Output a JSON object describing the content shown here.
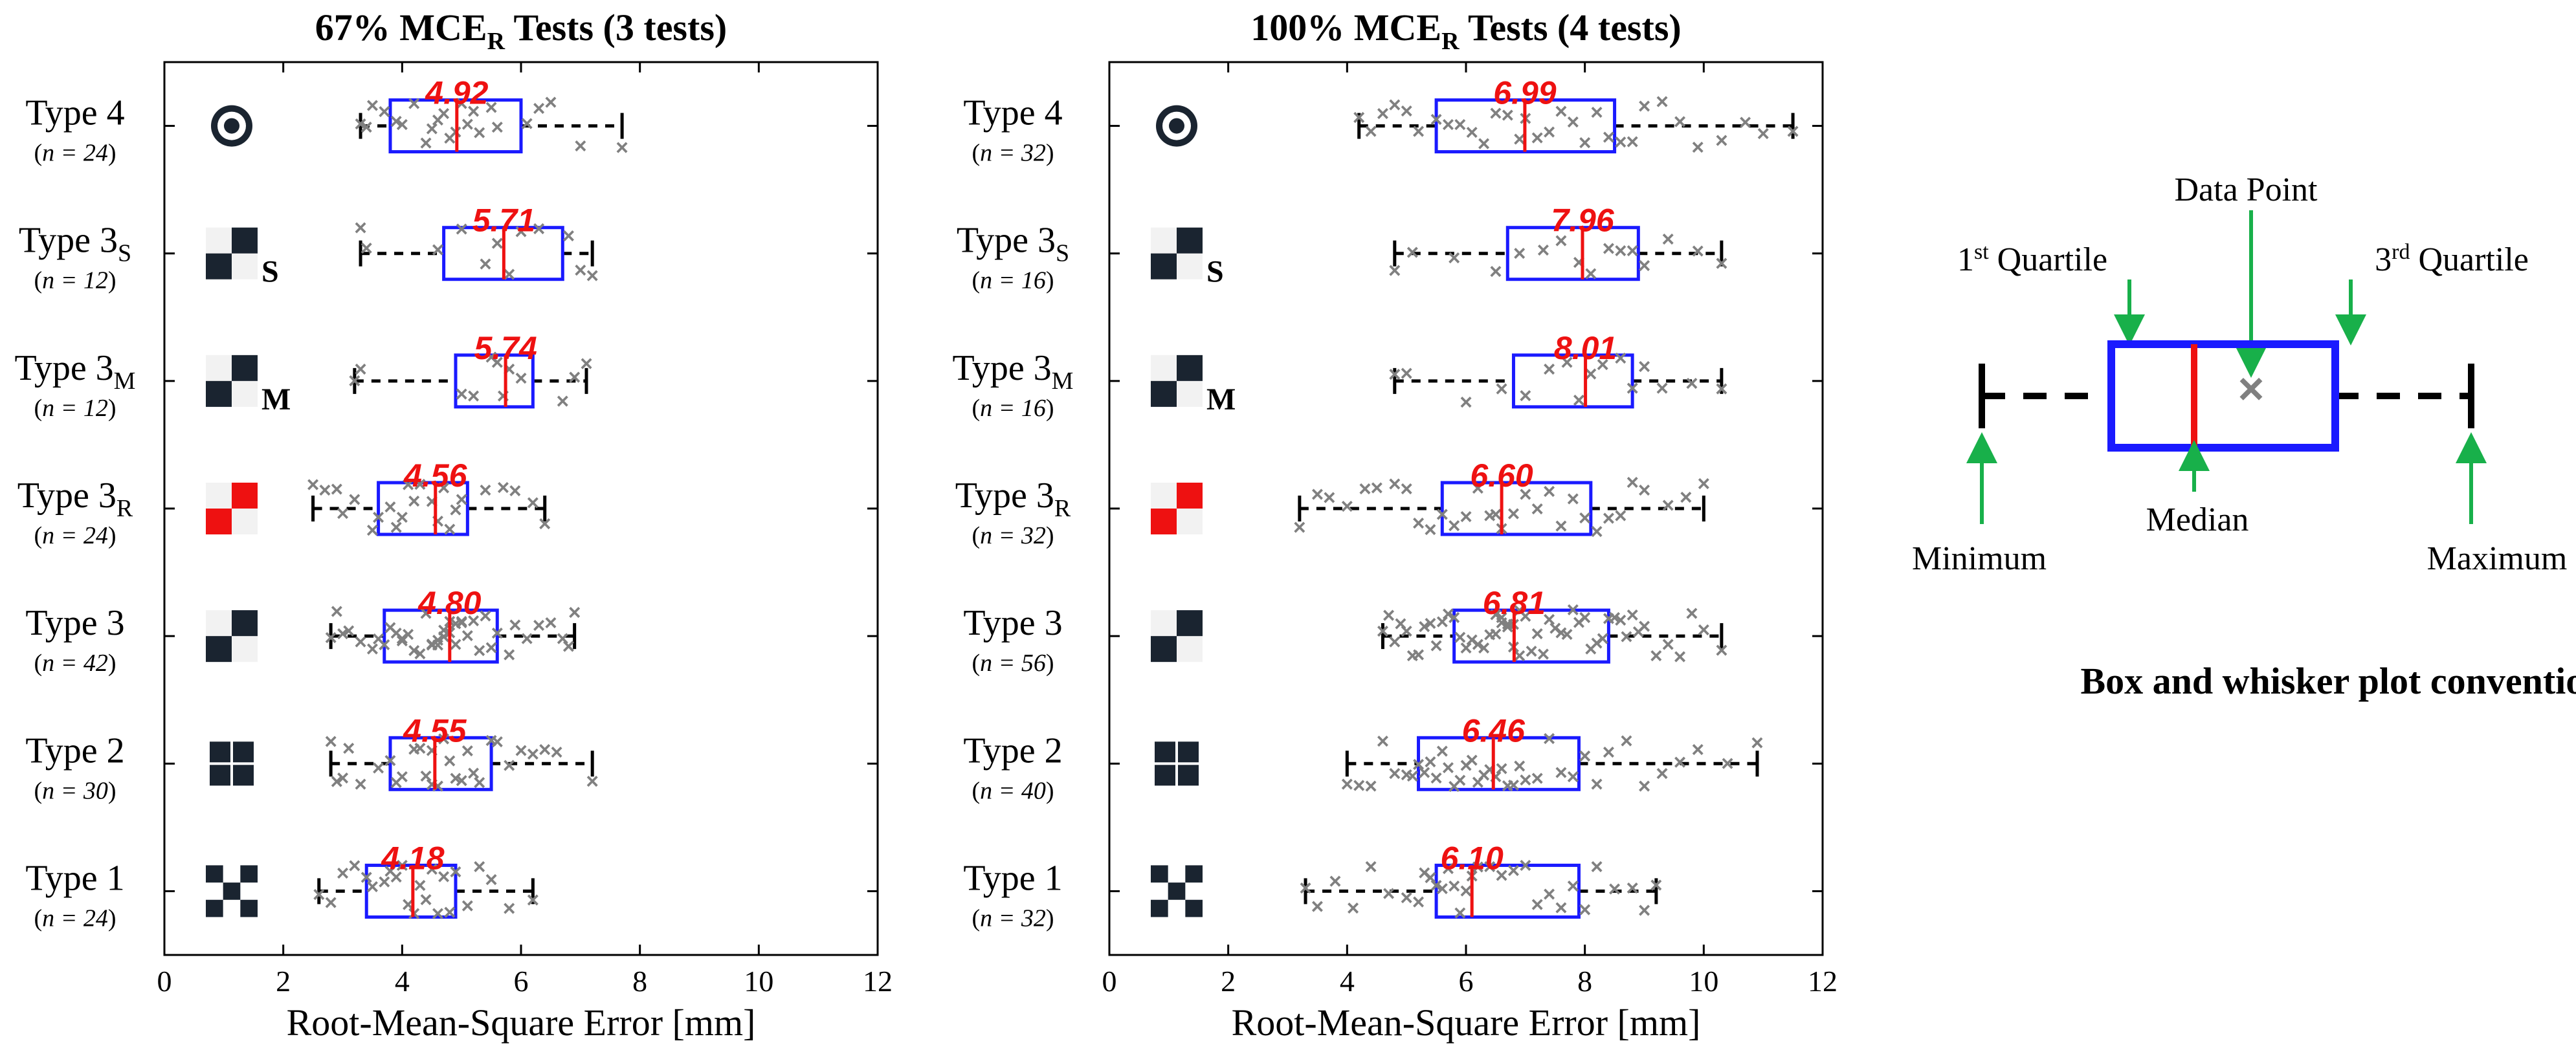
{
  "chart_data": [
    {
      "type": "box",
      "title": "67% MCE",
      "title_sub": "R",
      "title_rest": " Tests (3 tests)",
      "xlabel": "Root-Mean-Square Error [mm]",
      "xlim": [
        0,
        12
      ],
      "xticks": [
        0,
        2,
        4,
        6,
        8,
        10,
        12
      ],
      "categories": [
        {
          "name": "Type 4",
          "sub": "",
          "n": "24",
          "icon": "bullseye-icon",
          "q1": 3.8,
          "median": 4.92,
          "q3": 6.0,
          "min": 3.3,
          "max": 7.7,
          "label": "4.92",
          "points": [
            3.3,
            3.4,
            3.5,
            3.7,
            3.9,
            4.0,
            4.2,
            4.4,
            4.5,
            4.6,
            4.7,
            4.8,
            4.9,
            5.0,
            5.1,
            5.2,
            5.3,
            5.5,
            5.6,
            6.1,
            6.3,
            6.5,
            7.0,
            7.7
          ]
        },
        {
          "name": "Type 3",
          "sub": "S",
          "n": "12",
          "icon": "checker-s-icon",
          "q1": 4.7,
          "median": 5.71,
          "q3": 6.7,
          "min": 3.3,
          "max": 7.2,
          "label": "5.71",
          "points": [
            3.3,
            3.4,
            4.6,
            5.0,
            5.4,
            5.6,
            5.8,
            6.0,
            6.3,
            6.8,
            7.0,
            7.2
          ]
        },
        {
          "name": "Type 3",
          "sub": "M",
          "n": "12",
          "icon": "checker-m-icon",
          "q1": 4.9,
          "median": 5.74,
          "q3": 6.2,
          "min": 3.2,
          "max": 7.1,
          "label": "5.74",
          "points": [
            3.2,
            3.3,
            5.0,
            5.2,
            5.5,
            5.6,
            5.7,
            5.8,
            6.0,
            6.7,
            6.9,
            7.1
          ]
        },
        {
          "name": "Type 3",
          "sub": "R",
          "n": "24",
          "icon": "checker-r-icon",
          "q1": 3.6,
          "median": 4.56,
          "q3": 5.1,
          "min": 2.5,
          "max": 6.4,
          "label": "4.56",
          "points": [
            2.5,
            2.7,
            2.9,
            3.0,
            3.2,
            3.5,
            3.6,
            3.8,
            3.9,
            4.0,
            4.1,
            4.2,
            4.3,
            4.5,
            4.6,
            4.7,
            4.8,
            4.9,
            5.0,
            5.4,
            5.7,
            5.9,
            6.2,
            6.4
          ]
        },
        {
          "name": "Type 3",
          "sub": "",
          "n": "42",
          "icon": "checker-icon",
          "q1": 3.7,
          "median": 4.8,
          "q3": 5.6,
          "min": 2.8,
          "max": 6.9,
          "label": "4.80",
          "points": [
            2.8,
            2.9,
            3.0,
            3.1,
            3.3,
            3.5,
            3.6,
            3.7,
            3.8,
            3.9,
            4.0,
            4.0,
            4.1,
            4.2,
            4.3,
            4.4,
            4.5,
            4.5,
            4.6,
            4.6,
            4.7,
            4.7,
            4.8,
            4.8,
            4.9,
            4.9,
            5.0,
            5.0,
            5.1,
            5.2,
            5.3,
            5.4,
            5.5,
            5.6,
            5.8,
            5.9,
            6.1,
            6.3,
            6.5,
            6.7,
            6.8,
            6.9
          ]
        },
        {
          "name": "Type 2",
          "sub": "",
          "n": "30",
          "icon": "grid-icon",
          "q1": 3.8,
          "median": 4.55,
          "q3": 5.5,
          "min": 2.8,
          "max": 7.2,
          "label": "4.55",
          "points": [
            2.8,
            2.9,
            3.0,
            3.1,
            3.3,
            3.6,
            3.8,
            3.9,
            4.0,
            4.2,
            4.3,
            4.4,
            4.5,
            4.5,
            4.6,
            4.7,
            4.8,
            4.9,
            5.0,
            5.1,
            5.2,
            5.3,
            5.5,
            5.6,
            5.8,
            6.0,
            6.2,
            6.4,
            6.6,
            7.2
          ]
        },
        {
          "name": "Type 1",
          "sub": "",
          "n": "24",
          "icon": "x-pattern-icon",
          "q1": 3.4,
          "median": 4.18,
          "q3": 4.9,
          "min": 2.6,
          "max": 6.2,
          "label": "4.18",
          "points": [
            2.6,
            2.8,
            3.0,
            3.2,
            3.4,
            3.5,
            3.7,
            3.8,
            3.9,
            4.0,
            4.1,
            4.2,
            4.3,
            4.4,
            4.5,
            4.6,
            4.7,
            4.8,
            4.9,
            5.1,
            5.3,
            5.5,
            5.8,
            6.2
          ]
        }
      ]
    },
    {
      "type": "box",
      "title": "100% MCE",
      "title_sub": "R",
      "title_rest": " Tests (4 tests)",
      "xlabel": "Root-Mean-Square Error [mm]",
      "xlim": [
        0,
        12
      ],
      "xticks": [
        0,
        2,
        4,
        6,
        8,
        10,
        12
      ],
      "categories": [
        {
          "name": "Type 4",
          "sub": "",
          "n": "32",
          "icon": "bullseye-icon",
          "q1": 5.5,
          "median": 6.99,
          "q3": 8.5,
          "min": 4.2,
          "max": 11.5,
          "label": "6.99",
          "points": [
            4.2,
            4.4,
            4.6,
            4.8,
            5.0,
            5.2,
            5.5,
            5.7,
            5.9,
            6.1,
            6.3,
            6.5,
            6.7,
            6.9,
            7.0,
            7.2,
            7.4,
            7.6,
            7.8,
            8.0,
            8.2,
            8.4,
            8.6,
            8.8,
            9.0,
            9.3,
            9.6,
            9.9,
            10.3,
            10.7,
            11.0,
            11.5
          ]
        },
        {
          "name": "Type 3",
          "sub": "S",
          "n": "16",
          "icon": "checker-s-icon",
          "q1": 6.7,
          "median": 7.96,
          "q3": 8.9,
          "min": 4.8,
          "max": 10.3,
          "label": "7.96",
          "points": [
            4.8,
            5.1,
            5.8,
            6.5,
            6.9,
            7.3,
            7.6,
            7.9,
            8.1,
            8.4,
            8.6,
            8.8,
            9.0,
            9.4,
            9.9,
            10.3
          ]
        },
        {
          "name": "Type 3",
          "sub": "M",
          "n": "16",
          "icon": "checker-m-icon",
          "q1": 6.8,
          "median": 8.01,
          "q3": 8.8,
          "min": 4.8,
          "max": 10.3,
          "label": "8.01",
          "points": [
            4.8,
            5.0,
            6.0,
            6.6,
            7.0,
            7.4,
            7.7,
            7.9,
            8.1,
            8.3,
            8.6,
            8.8,
            9.0,
            9.3,
            9.8,
            10.3
          ]
        },
        {
          "name": "Type 3",
          "sub": "R",
          "n": "32",
          "icon": "checker-r-icon",
          "q1": 5.6,
          "median": 6.6,
          "q3": 8.1,
          "min": 3.2,
          "max": 10.0,
          "label": "6.60",
          "points": [
            3.2,
            3.5,
            3.7,
            4.0,
            4.3,
            4.5,
            4.8,
            5.0,
            5.2,
            5.4,
            5.6,
            5.8,
            6.0,
            6.2,
            6.4,
            6.5,
            6.6,
            6.8,
            7.0,
            7.2,
            7.4,
            7.6,
            7.8,
            8.0,
            8.2,
            8.4,
            8.6,
            8.8,
            9.0,
            9.4,
            9.7,
            10.0
          ]
        },
        {
          "name": "Type 3",
          "sub": "",
          "n": "56",
          "icon": "checker-icon",
          "q1": 5.8,
          "median": 6.81,
          "q3": 8.4,
          "min": 4.6,
          "max": 10.3,
          "label": "6.81",
          "points": [
            4.6,
            4.7,
            4.8,
            4.9,
            5.0,
            5.1,
            5.2,
            5.3,
            5.4,
            5.5,
            5.6,
            5.7,
            5.8,
            5.9,
            6.0,
            6.1,
            6.2,
            6.3,
            6.4,
            6.5,
            6.5,
            6.6,
            6.6,
            6.7,
            6.7,
            6.8,
            6.8,
            6.9,
            6.9,
            7.0,
            7.1,
            7.2,
            7.3,
            7.4,
            7.5,
            7.6,
            7.7,
            7.8,
            7.9,
            8.0,
            8.1,
            8.2,
            8.3,
            8.4,
            8.5,
            8.6,
            8.7,
            8.8,
            8.9,
            9.0,
            9.2,
            9.4,
            9.6,
            9.8,
            10.0,
            10.3
          ]
        },
        {
          "name": "Type 2",
          "sub": "",
          "n": "40",
          "icon": "grid-icon",
          "q1": 5.2,
          "median": 6.46,
          "q3": 7.9,
          "min": 4.0,
          "max": 10.9,
          "label": "6.46",
          "points": [
            4.0,
            4.2,
            4.4,
            4.6,
            4.8,
            5.0,
            5.1,
            5.2,
            5.3,
            5.4,
            5.5,
            5.6,
            5.7,
            5.8,
            5.9,
            6.0,
            6.1,
            6.2,
            6.3,
            6.4,
            6.5,
            6.6,
            6.7,
            6.8,
            6.9,
            7.0,
            7.2,
            7.4,
            7.6,
            7.8,
            8.0,
            8.2,
            8.4,
            8.7,
            9.0,
            9.3,
            9.6,
            9.9,
            10.4,
            10.9
          ]
        },
        {
          "name": "Type 1",
          "sub": "",
          "n": "32",
          "icon": "x-pattern-icon",
          "q1": 5.5,
          "median": 6.1,
          "q3": 7.9,
          "min": 3.3,
          "max": 9.2,
          "label": "6.10",
          "points": [
            3.3,
            3.5,
            3.8,
            4.1,
            4.4,
            4.7,
            5.0,
            5.2,
            5.3,
            5.4,
            5.5,
            5.6,
            5.7,
            5.8,
            5.9,
            6.0,
            6.1,
            6.2,
            6.4,
            6.6,
            6.8,
            7.0,
            7.2,
            7.4,
            7.6,
            7.8,
            8.0,
            8.2,
            8.5,
            8.8,
            9.0,
            9.2
          ]
        }
      ]
    }
  ],
  "legend": {
    "title": "Box and whisker plot convention",
    "data_point": "Data Point",
    "q1_main": "1",
    "q1_sup": "st",
    "q1_rest": " Quartile",
    "q3_main": "3",
    "q3_sup": "rd",
    "q3_rest": " Quartile",
    "minimum": "Minimum",
    "median": "Median",
    "maximum": "Maximum"
  },
  "n_prefix": "(",
  "n_label": "n",
  "n_eq": " = ",
  "n_suffix": ")",
  "colors": {
    "box": "#1a1aff",
    "median": "#ee1111",
    "label": "#ee1111",
    "point": "#808080",
    "arrow": "#18b04a",
    "icon_dark": "#1a2430",
    "icon_red": "#ee1111"
  }
}
